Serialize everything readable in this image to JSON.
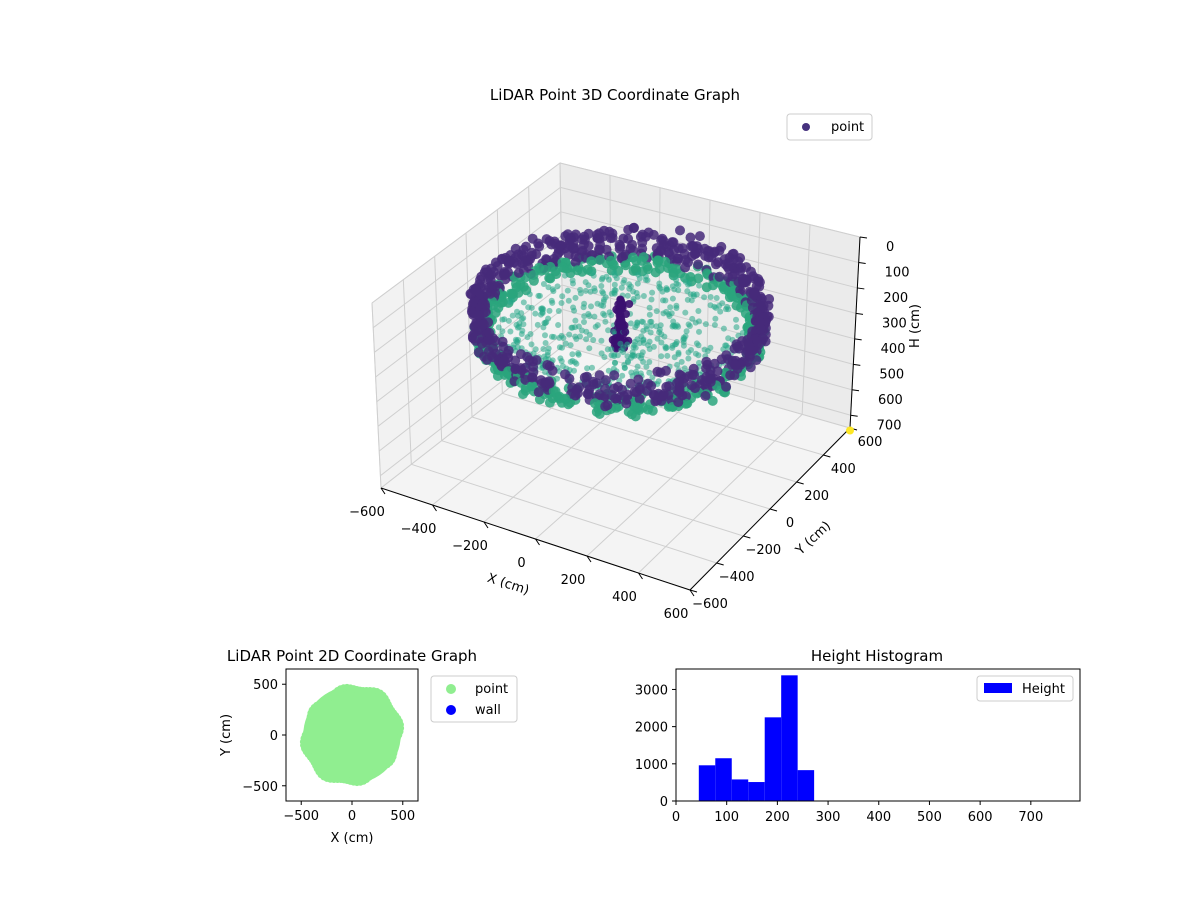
{
  "chart_data": [
    {
      "type": "scatter3d",
      "title": "LiDAR Point 3D Coordinate Graph",
      "xlabel": "X (cm)",
      "ylabel": "Y (cm)",
      "zlabel": "H (cm)",
      "xticks": [
        "−600",
        "−400",
        "−200",
        "0",
        "200",
        "400",
        "600"
      ],
      "yticks": [
        "−600",
        "−400",
        "−200",
        "0",
        "200",
        "400",
        "600"
      ],
      "zticks": [
        "0",
        "100",
        "200",
        "300",
        "400",
        "500",
        "600",
        "700"
      ],
      "xlim": [
        -600,
        600
      ],
      "ylim": [
        -600,
        600
      ],
      "zlim": [
        0,
        750
      ],
      "z_inverted": true,
      "legend": {
        "entries": [
          "point"
        ],
        "placement": "top-right",
        "marker_color": "#46327e"
      },
      "colormap": "viridis",
      "grid": true,
      "structure": {
        "outer_ring": {
          "radius": 500,
          "height_range": [
            100,
            220
          ],
          "color": "#472a7a"
        },
        "lower_ring": {
          "radius": 480,
          "height_range": [
            200,
            260
          ],
          "color": "#2aa57c"
        },
        "floor_disc": {
          "radius": 430,
          "height": 230,
          "color": "#26a889"
        },
        "center_spire": {
          "height_range": [
            100,
            300
          ],
          "color": "#3b0f70"
        },
        "outlier": {
          "x": 600,
          "y": 600,
          "h": 760,
          "color": "#fde725"
        }
      }
    },
    {
      "type": "scatter",
      "title": "LiDAR Point 2D Coordinate Graph",
      "xlabel": "X (cm)",
      "ylabel": "Y (cm)",
      "xticks": [
        "−500",
        "0",
        "500"
      ],
      "yticks": [
        "500",
        "0",
        "−500"
      ],
      "xlim": [
        -650,
        650
      ],
      "ylim": [
        -650,
        650
      ],
      "series": [
        {
          "name": "point",
          "color": "#90ee90",
          "shape": "disc",
          "radius": 480
        },
        {
          "name": "wall",
          "color": "#0000ff",
          "points": []
        }
      ],
      "legend": {
        "placement": "outside-right"
      },
      "grid": false
    },
    {
      "type": "histogram",
      "title": "Height Histogram",
      "series": [
        {
          "name": "Height",
          "color": "#0000ff"
        }
      ],
      "bin_width": 32.5,
      "bins": [
        {
          "x0": 45,
          "count": 960
        },
        {
          "x0": 77.5,
          "count": 1150
        },
        {
          "x0": 110,
          "count": 580
        },
        {
          "x0": 142.5,
          "count": 510
        },
        {
          "x0": 175,
          "count": 2250
        },
        {
          "x0": 207.5,
          "count": 3380
        },
        {
          "x0": 240,
          "count": 830
        }
      ],
      "xticks": [
        "0",
        "100",
        "200",
        "300",
        "400",
        "500",
        "600",
        "700"
      ],
      "yticks": [
        "0",
        "1000",
        "2000",
        "3000"
      ],
      "xlim": [
        0,
        797
      ],
      "ylim": [
        0,
        3550
      ],
      "legend": {
        "placement": "top-right"
      },
      "grid": false
    }
  ]
}
